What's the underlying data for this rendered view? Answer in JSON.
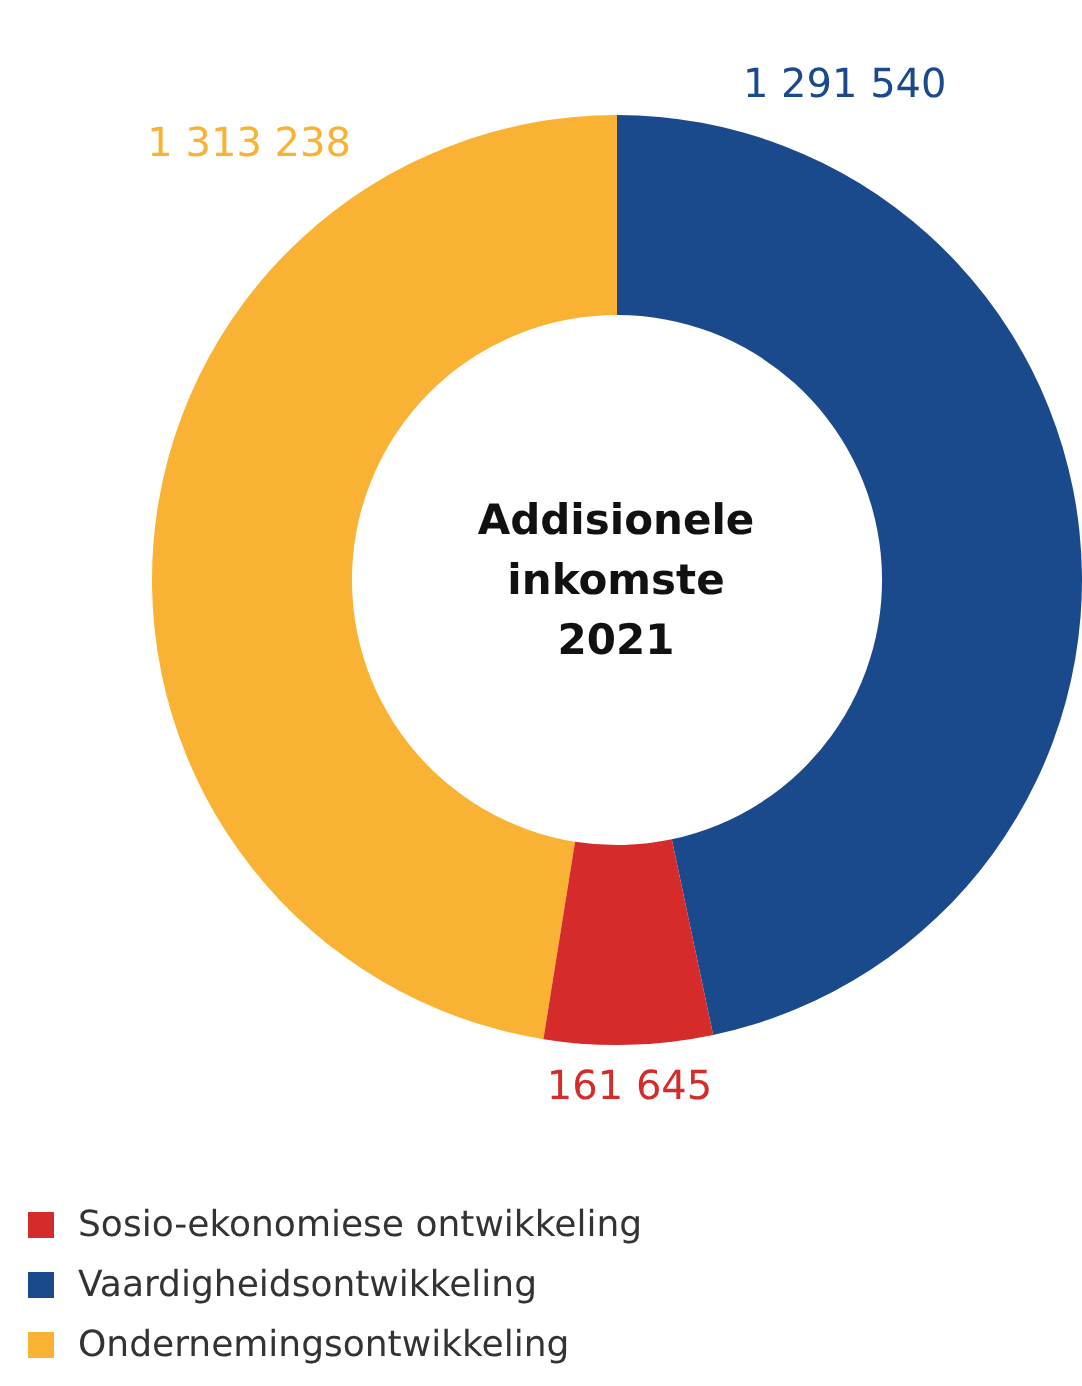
{
  "chart_data": {
    "type": "donut",
    "title": "Addisionele inkomste 2021",
    "categories": [
      "Sosio-ekonomiese ontwikkeling",
      "Vaardigheidsontwikkeling",
      "Ondernemingsontwikkeling"
    ],
    "values": [
      161645,
      1291540,
      1313238
    ],
    "colors": [
      "#d62b2b",
      "#1a4a8c",
      "#f9b233"
    ],
    "value_labels": [
      "161 645",
      "1 291 540",
      "1 313 238"
    ],
    "legend": "bottom left"
  }
}
